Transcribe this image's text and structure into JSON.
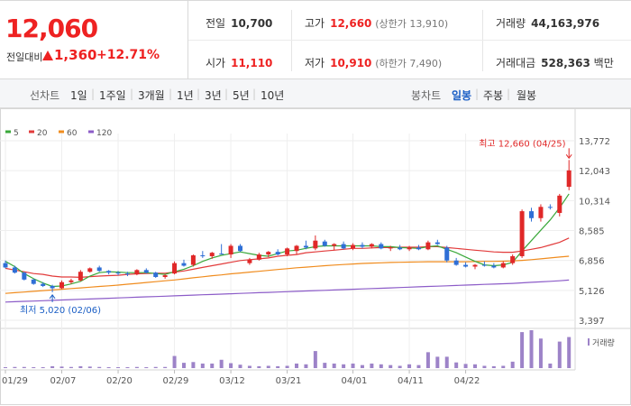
{
  "quote": {
    "price": "12,060",
    "change_label": "전일대비",
    "change": "1,360",
    "change_rate": "+12.71%",
    "prev_close_label": "전일",
    "prev_close": "10,700",
    "open_label": "시가",
    "open": "11,110",
    "high_label": "고가",
    "high": "12,660",
    "upper_limit": "(상한가 13,910)",
    "low_label": "저가",
    "low": "10,910",
    "lower_limit": "(하한가 7,490)",
    "volume_label": "거래량",
    "volume": "44,163,976",
    "amount_label": "거래대금",
    "amount": "528,363",
    "amount_unit": "백만"
  },
  "tabs": {
    "line_chart_label": "선차트",
    "periods": [
      "1일",
      "1주일",
      "3개월",
      "1년",
      "3년",
      "5년",
      "10년"
    ],
    "candle_chart_label": "봉차트",
    "candle_periods": [
      "일봉",
      "주봉",
      "월봉"
    ],
    "active_candle": "일봉"
  },
  "chart_data": {
    "type": "candlestick",
    "legend": [
      {
        "name": "5",
        "color": "#3aa83a"
      },
      {
        "name": "20",
        "color": "#e23b3b"
      },
      {
        "name": "60",
        "color": "#f08c1e"
      },
      {
        "name": "120",
        "color": "#8c5cc8"
      }
    ],
    "y_ticks": [
      13772,
      12043,
      10314,
      8585,
      6856,
      5126,
      3397
    ],
    "y_tick_labels": [
      "13,772",
      "12,043",
      "10,314",
      "8,585",
      "6,856",
      "5,126",
      "3,397"
    ],
    "ylim": [
      3397,
      13772
    ],
    "x_tick_labels": [
      {
        "i": 0,
        "label": "01/29"
      },
      {
        "i": 6,
        "label": "02/07"
      },
      {
        "i": 12,
        "label": "02/20"
      },
      {
        "i": 18,
        "label": "02/29"
      },
      {
        "i": 24,
        "label": "03/12"
      },
      {
        "i": 30,
        "label": "03/21"
      },
      {
        "i": 37,
        "label": "04/01"
      },
      {
        "i": 43,
        "label": "04/11"
      },
      {
        "i": 49,
        "label": "04/22"
      }
    ],
    "max_annotation": "최고 12,660 (04/25)",
    "min_annotation": "최저 5,020 (02/06)",
    "volume_label": "거래량",
    "candles": [
      {
        "o": 6700,
        "h": 6850,
        "l": 6400,
        "c": 6450,
        "v": 0.02
      },
      {
        "o": 6450,
        "h": 6550,
        "l": 6100,
        "c": 6150,
        "v": 0.03
      },
      {
        "o": 6150,
        "h": 6200,
        "l": 5700,
        "c": 5750,
        "v": 0.03
      },
      {
        "o": 5750,
        "h": 5800,
        "l": 5450,
        "c": 5500,
        "v": 0.02
      },
      {
        "o": 5500,
        "h": 5600,
        "l": 5320,
        "c": 5380,
        "v": 0.02
      },
      {
        "o": 5380,
        "h": 5450,
        "l": 5020,
        "c": 5250,
        "v": 0.05
      },
      {
        "o": 5250,
        "h": 5700,
        "l": 5200,
        "c": 5600,
        "v": 0.04
      },
      {
        "o": 5600,
        "h": 5800,
        "l": 5500,
        "c": 5700,
        "v": 0.03
      },
      {
        "o": 5700,
        "h": 6300,
        "l": 5650,
        "c": 6200,
        "v": 0.05
      },
      {
        "o": 6200,
        "h": 6450,
        "l": 6150,
        "c": 6400,
        "v": 0.04
      },
      {
        "o": 6450,
        "h": 6550,
        "l": 6200,
        "c": 6250,
        "v": 0.03
      },
      {
        "o": 6250,
        "h": 6300,
        "l": 6050,
        "c": 6150,
        "v": 0.02
      },
      {
        "o": 6150,
        "h": 6250,
        "l": 6000,
        "c": 6100,
        "v": 0.02
      },
      {
        "o": 6100,
        "h": 6200,
        "l": 5950,
        "c": 6050,
        "v": 0.02
      },
      {
        "o": 6050,
        "h": 6350,
        "l": 6000,
        "c": 6300,
        "v": 0.03
      },
      {
        "o": 6300,
        "h": 6400,
        "l": 6100,
        "c": 6150,
        "v": 0.02
      },
      {
        "o": 6150,
        "h": 6200,
        "l": 5850,
        "c": 5900,
        "v": 0.03
      },
      {
        "o": 5900,
        "h": 6050,
        "l": 5800,
        "c": 6000,
        "v": 0.03
      },
      {
        "o": 6100,
        "h": 6800,
        "l": 6050,
        "c": 6700,
        "v": 0.32
      },
      {
        "o": 6700,
        "h": 6900,
        "l": 6500,
        "c": 6550,
        "v": 0.14
      },
      {
        "o": 6600,
        "h": 7200,
        "l": 6500,
        "c": 7150,
        "v": 0.16
      },
      {
        "o": 7150,
        "h": 7400,
        "l": 7000,
        "c": 7100,
        "v": 0.12
      },
      {
        "o": 7100,
        "h": 7350,
        "l": 6950,
        "c": 7300,
        "v": 0.12
      },
      {
        "o": 7250,
        "h": 7800,
        "l": 7200,
        "c": 7200,
        "v": 0.22
      },
      {
        "o": 7200,
        "h": 7800,
        "l": 7000,
        "c": 7700,
        "v": 0.13
      },
      {
        "o": 7700,
        "h": 7800,
        "l": 7350,
        "c": 7400,
        "v": 0.09
      },
      {
        "o": 6700,
        "h": 7000,
        "l": 6600,
        "c": 6900,
        "v": 0.06
      },
      {
        "o": 6900,
        "h": 7300,
        "l": 6850,
        "c": 7200,
        "v": 0.05
      },
      {
        "o": 7200,
        "h": 7400,
        "l": 7050,
        "c": 7350,
        "v": 0.06
      },
      {
        "o": 7350,
        "h": 7500,
        "l": 7150,
        "c": 7200,
        "v": 0.05
      },
      {
        "o": 7200,
        "h": 7600,
        "l": 7100,
        "c": 7550,
        "v": 0.06
      },
      {
        "o": 7400,
        "h": 7750,
        "l": 7200,
        "c": 7700,
        "v": 0.12
      },
      {
        "o": 7700,
        "h": 8000,
        "l": 7500,
        "c": 7600,
        "v": 0.1
      },
      {
        "o": 7550,
        "h": 8300,
        "l": 7450,
        "c": 8000,
        "v": 0.45
      },
      {
        "o": 7950,
        "h": 8050,
        "l": 7650,
        "c": 7700,
        "v": 0.14
      },
      {
        "o": 7700,
        "h": 7850,
        "l": 7450,
        "c": 7800,
        "v": 0.12
      },
      {
        "o": 7800,
        "h": 7950,
        "l": 7500,
        "c": 7550,
        "v": 0.1
      },
      {
        "o": 7550,
        "h": 7850,
        "l": 7450,
        "c": 7750,
        "v": 0.12
      },
      {
        "o": 7750,
        "h": 7900,
        "l": 7550,
        "c": 7650,
        "v": 0.08
      },
      {
        "o": 7650,
        "h": 7850,
        "l": 7550,
        "c": 7800,
        "v": 0.12
      },
      {
        "o": 7800,
        "h": 7900,
        "l": 7500,
        "c": 7550,
        "v": 0.1
      },
      {
        "o": 7550,
        "h": 7700,
        "l": 7400,
        "c": 7600,
        "v": 0.08
      },
      {
        "o": 7600,
        "h": 7750,
        "l": 7450,
        "c": 7500,
        "v": 0.06
      },
      {
        "o": 7500,
        "h": 7700,
        "l": 7400,
        "c": 7600,
        "v": 0.1
      },
      {
        "o": 7600,
        "h": 7750,
        "l": 7450,
        "c": 7500,
        "v": 0.08
      },
      {
        "o": 7500,
        "h": 8000,
        "l": 7450,
        "c": 7900,
        "v": 0.42
      },
      {
        "o": 7900,
        "h": 8050,
        "l": 7750,
        "c": 7800,
        "v": 0.3
      },
      {
        "o": 7600,
        "h": 7700,
        "l": 6750,
        "c": 6850,
        "v": 0.3
      },
      {
        "o": 6850,
        "h": 7000,
        "l": 6550,
        "c": 6600,
        "v": 0.15
      },
      {
        "o": 6600,
        "h": 6750,
        "l": 6450,
        "c": 6500,
        "v": 0.11
      },
      {
        "o": 6500,
        "h": 6650,
        "l": 6350,
        "c": 6600,
        "v": 0.1
      },
      {
        "o": 6600,
        "h": 6800,
        "l": 6500,
        "c": 6550,
        "v": 0.06
      },
      {
        "o": 6550,
        "h": 6700,
        "l": 6400,
        "c": 6450,
        "v": 0.05
      },
      {
        "o": 6450,
        "h": 6800,
        "l": 6400,
        "c": 6700,
        "v": 0.06
      },
      {
        "o": 6700,
        "h": 7200,
        "l": 6600,
        "c": 7100,
        "v": 0.17
      },
      {
        "o": 7100,
        "h": 9800,
        "l": 7000,
        "c": 9700,
        "v": 0.95
      },
      {
        "o": 9700,
        "h": 9900,
        "l": 9100,
        "c": 9300,
        "v": 1.0
      },
      {
        "o": 9300,
        "h": 10100,
        "l": 9100,
        "c": 9950,
        "v": 0.78
      },
      {
        "o": 9950,
        "h": 10100,
        "l": 9800,
        "c": 9900,
        "v": 0.12
      },
      {
        "o": 9600,
        "h": 10700,
        "l": 9400,
        "c": 10600,
        "v": 0.7
      },
      {
        "o": 11110,
        "h": 12660,
        "l": 10910,
        "c": 12060,
        "v": 0.82
      }
    ],
    "ma5": [
      6800,
      6500,
      6100,
      5800,
      5550,
      5350,
      5380,
      5500,
      5650,
      5950,
      6150,
      6200,
      6180,
      6150,
      6150,
      6150,
      6100,
      6050,
      6200,
      6350,
      6550,
      6800,
      7000,
      7150,
      7250,
      7350,
      7250,
      7150,
      7100,
      7250,
      7400,
      7450,
      7550,
      7650,
      7700,
      7700,
      7700,
      7700,
      7700,
      7700,
      7650,
      7650,
      7600,
      7580,
      7550,
      7650,
      7700,
      7500,
      7300,
      7050,
      6800,
      6600,
      6550,
      6600,
      6750,
      7400,
      8000,
      8600,
      9200,
      9900,
      10700
    ],
    "ma20": [
      6400,
      6300,
      6200,
      6100,
      6050,
      5950,
      5900,
      5900,
      5880,
      5920,
      5950,
      5980,
      6000,
      6050,
      6080,
      6100,
      6120,
      6120,
      6180,
      6250,
      6350,
      6450,
      6550,
      6650,
      6750,
      6850,
      6900,
      6950,
      7000,
      7100,
      7150,
      7200,
      7300,
      7350,
      7400,
      7450,
      7500,
      7550,
      7550,
      7580,
      7600,
      7600,
      7620,
      7620,
      7620,
      7650,
      7650,
      7600,
      7550,
      7500,
      7450,
      7400,
      7350,
      7330,
      7330,
      7400,
      7500,
      7600,
      7750,
      7900,
      8150
    ],
    "ma60": [
      4950,
      4990,
      5030,
      5070,
      5110,
      5150,
      5190,
      5230,
      5270,
      5310,
      5350,
      5390,
      5430,
      5480,
      5530,
      5580,
      5630,
      5680,
      5730,
      5790,
      5850,
      5910,
      5970,
      6020,
      6080,
      6130,
      6180,
      6230,
      6280,
      6330,
      6380,
      6430,
      6470,
      6510,
      6550,
      6590,
      6620,
      6650,
      6680,
      6700,
      6720,
      6740,
      6750,
      6760,
      6770,
      6780,
      6780,
      6780,
      6780,
      6780,
      6790,
      6800,
      6800,
      6810,
      6830,
      6860,
      6900,
      6950,
      7000,
      7050,
      7100
    ],
    "ma120": [
      4450,
      4470,
      4490,
      4510,
      4530,
      4550,
      4570,
      4590,
      4610,
      4630,
      4650,
      4670,
      4690,
      4710,
      4730,
      4750,
      4770,
      4790,
      4810,
      4830,
      4850,
      4870,
      4890,
      4910,
      4930,
      4950,
      4970,
      4990,
      5010,
      5030,
      5050,
      5070,
      5090,
      5110,
      5130,
      5150,
      5170,
      5190,
      5210,
      5230,
      5250,
      5270,
      5290,
      5310,
      5330,
      5350,
      5370,
      5390,
      5410,
      5430,
      5450,
      5470,
      5490,
      5510,
      5530,
      5560,
      5590,
      5620,
      5650,
      5680,
      5720
    ]
  }
}
